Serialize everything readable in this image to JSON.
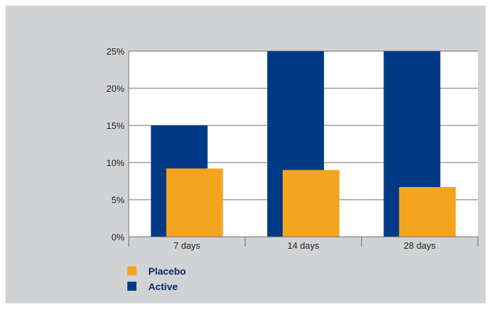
{
  "chart_data": {
    "type": "bar",
    "title": "",
    "xlabel": "",
    "ylabel": "",
    "categories": [
      "7 days",
      "14 days",
      "28 days"
    ],
    "ylim": [
      0,
      25
    ],
    "yticks": [
      0,
      5,
      10,
      15,
      20,
      25
    ],
    "ytick_labels": [
      "0%",
      "5%",
      "10%",
      "15%",
      "20%",
      "25%"
    ],
    "grid": true,
    "legend_placement": "bottom-left",
    "series": [
      {
        "name": "Active",
        "color": "#003a87",
        "values": [
          15,
          25,
          25
        ]
      },
      {
        "name": "Placebo",
        "color": "#f5a51d",
        "values": [
          9.2,
          9.0,
          6.7
        ]
      }
    ],
    "legend_order": [
      "Placebo",
      "Active"
    ]
  }
}
